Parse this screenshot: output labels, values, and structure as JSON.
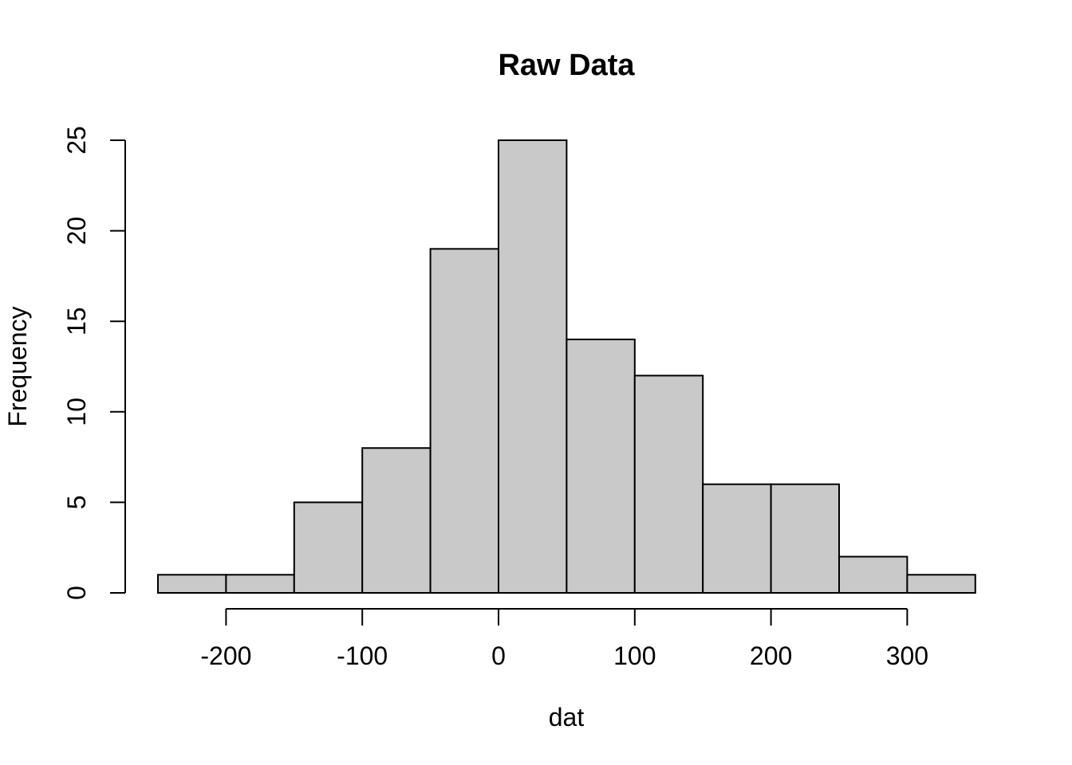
{
  "chart_data": {
    "type": "bar",
    "subtype": "histogram",
    "title": "Raw Data",
    "xlabel": "dat",
    "ylabel": "Frequency",
    "bin_breaks": [
      -250,
      -200,
      -150,
      -100,
      -50,
      0,
      50,
      100,
      150,
      200,
      250,
      300,
      350
    ],
    "counts": [
      1,
      1,
      5,
      8,
      19,
      25,
      14,
      12,
      6,
      6,
      2,
      1
    ],
    "x_ticks": [
      -200,
      -100,
      0,
      100,
      200,
      300
    ],
    "y_ticks": [
      0,
      5,
      10,
      15,
      20,
      25
    ],
    "xlim": [
      -250,
      350
    ],
    "ylim": [
      0,
      25
    ],
    "grid": false,
    "legend": false,
    "colors": {
      "bar_fill": "#C9C9C9",
      "bar_stroke": "#000000",
      "axis": "#000000",
      "text": "#000000",
      "background": "#FFFFFF"
    }
  }
}
